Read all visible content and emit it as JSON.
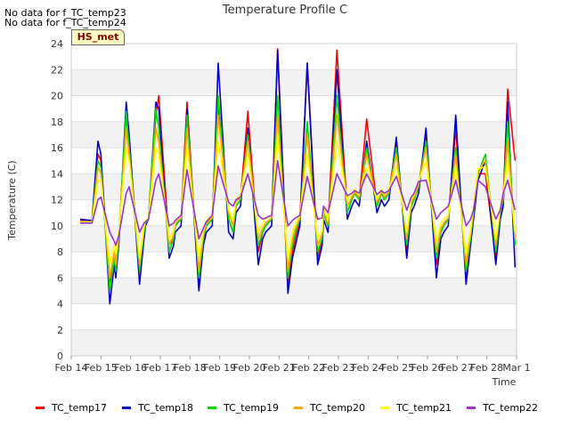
{
  "messages": [
    "No data for f_TC_temp23",
    "No data for f_TC_temp24"
  ],
  "badge": "HS_met",
  "chart_data": {
    "type": "line",
    "title": "Temperature Profile C",
    "xlabel": "Time",
    "ylabel": "Temperature (C)",
    "ylim": [
      0,
      24
    ],
    "yticks": [
      0,
      2,
      4,
      6,
      8,
      10,
      12,
      14,
      16,
      18,
      20,
      22,
      24
    ],
    "xticks": [
      "Feb 14",
      "Feb 15",
      "Feb 16",
      "Feb 17",
      "Feb 18",
      "Feb 19",
      "Feb 20",
      "Feb 21",
      "Feb 22",
      "Feb 23",
      "Feb 24",
      "Feb 25",
      "Feb 26",
      "Feb 27",
      "Feb 28",
      "Mar 1"
    ],
    "x_unit": "day index (0 = Feb 14)",
    "grid": true,
    "legend": "bottom",
    "series": [
      {
        "name": "TC_temp17",
        "color": "#ff0000",
        "x": [
          0.3,
          0.7,
          0.9,
          1.0,
          1.3,
          1.45,
          1.5,
          1.6,
          1.85,
          1.95,
          2.3,
          2.45,
          2.5,
          2.6,
          2.85,
          2.95,
          3.3,
          3.45,
          3.5,
          3.7,
          3.9,
          4.3,
          4.45,
          4.55,
          4.75,
          4.95,
          5.3,
          5.45,
          5.55,
          5.7,
          5.95,
          6.3,
          6.45,
          6.55,
          6.75,
          6.95,
          7.3,
          7.45,
          7.55,
          7.7,
          7.95,
          8.3,
          8.45,
          8.5,
          8.65,
          8.95,
          9.3,
          9.45,
          9.55,
          9.7,
          9.95,
          10.3,
          10.45,
          10.55,
          10.7,
          10.95,
          11.3,
          11.45,
          11.55,
          11.7,
          11.95,
          12.3,
          12.45,
          12.55,
          12.7,
          12.95,
          13.3,
          13.45,
          13.55,
          13.7,
          13.95,
          14.3,
          14.45,
          14.55,
          14.7,
          14.95
        ],
        "y": [
          10.4,
          10.3,
          15.5,
          15.0,
          5.5,
          7.5,
          6.8,
          9.0,
          18.5,
          16.5,
          6.5,
          9.5,
          10.3,
          10.5,
          18.5,
          20.0,
          8.5,
          9.0,
          10.0,
          10.5,
          19.5,
          5.2,
          9.0,
          10.0,
          10.5,
          19.0,
          10.5,
          9.5,
          11.5,
          12.0,
          18.8,
          8.0,
          9.5,
          10.0,
          10.5,
          23.6,
          5.5,
          8.0,
          9.0,
          10.5,
          22.5,
          7.5,
          9.0,
          11.0,
          10.0,
          23.5,
          11.0,
          12.0,
          12.5,
          12.0,
          18.2,
          11.5,
          12.5,
          12.0,
          12.5,
          16.5,
          8.0,
          11.5,
          12.0,
          13.0,
          17.0,
          7.0,
          9.5,
          10.0,
          10.5,
          17.5,
          6.0,
          9.0,
          11.0,
          14.0,
          14.0,
          7.5,
          11.0,
          12.0,
          20.5,
          15.0
        ]
      },
      {
        "name": "TC_temp18",
        "color": "#0000cc",
        "x": [
          0.3,
          0.7,
          0.9,
          1.0,
          1.3,
          1.45,
          1.5,
          1.6,
          1.85,
          1.95,
          2.3,
          2.45,
          2.5,
          2.6,
          2.85,
          2.95,
          3.3,
          3.45,
          3.5,
          3.7,
          3.9,
          4.3,
          4.45,
          4.55,
          4.75,
          4.95,
          5.3,
          5.45,
          5.55,
          5.7,
          5.95,
          6.3,
          6.45,
          6.55,
          6.75,
          6.95,
          7.3,
          7.45,
          7.55,
          7.7,
          7.95,
          8.3,
          8.45,
          8.5,
          8.65,
          8.95,
          9.3,
          9.45,
          9.55,
          9.7,
          9.95,
          10.3,
          10.45,
          10.55,
          10.7,
          10.95,
          11.3,
          11.45,
          11.55,
          11.7,
          11.95,
          12.3,
          12.45,
          12.55,
          12.7,
          12.95,
          13.3,
          13.45,
          13.55,
          13.7,
          13.95,
          14.3,
          14.45,
          14.55,
          14.7,
          14.95
        ],
        "y": [
          10.5,
          10.4,
          16.5,
          15.5,
          4.0,
          7.0,
          6.0,
          8.5,
          19.5,
          17.0,
          5.5,
          9.0,
          10.0,
          10.5,
          19.5,
          19.0,
          7.5,
          8.5,
          9.5,
          10.0,
          19.0,
          5.0,
          8.5,
          9.5,
          10.0,
          22.5,
          9.5,
          9.0,
          11.0,
          11.5,
          17.5,
          7.0,
          9.0,
          9.5,
          10.0,
          23.5,
          4.8,
          7.5,
          8.5,
          10.0,
          22.5,
          7.0,
          8.5,
          10.5,
          9.5,
          22.0,
          10.5,
          11.5,
          12.0,
          11.5,
          16.5,
          11.0,
          12.0,
          11.5,
          12.0,
          16.8,
          7.5,
          11.0,
          11.5,
          12.5,
          17.5,
          6.0,
          9.0,
          9.5,
          10.0,
          18.5,
          5.5,
          8.5,
          10.5,
          13.5,
          15.0,
          7.0,
          10.5,
          11.5,
          19.5,
          6.8
        ]
      },
      {
        "name": "TC_temp19",
        "color": "#00dd00",
        "x": [
          0.3,
          0.7,
          0.9,
          1.0,
          1.3,
          1.45,
          1.5,
          1.6,
          1.85,
          1.95,
          2.3,
          2.45,
          2.5,
          2.6,
          2.85,
          2.95,
          3.3,
          3.45,
          3.5,
          3.7,
          3.9,
          4.3,
          4.45,
          4.55,
          4.75,
          4.95,
          5.3,
          5.45,
          5.55,
          5.7,
          5.95,
          6.3,
          6.45,
          6.55,
          6.75,
          6.95,
          7.3,
          7.45,
          7.55,
          7.7,
          7.95,
          8.3,
          8.45,
          8.5,
          8.65,
          8.95,
          9.3,
          9.45,
          9.55,
          9.7,
          9.95,
          10.3,
          10.45,
          10.55,
          10.7,
          10.95,
          11.3,
          11.45,
          11.55,
          11.7,
          11.95,
          12.3,
          12.45,
          12.55,
          12.7,
          12.95,
          13.3,
          13.45,
          13.55,
          13.7,
          13.95,
          14.3,
          14.45,
          14.55,
          14.7,
          14.95
        ],
        "y": [
          10.3,
          10.3,
          15.0,
          14.5,
          5.0,
          7.5,
          6.5,
          9.0,
          18.8,
          16.0,
          6.5,
          9.5,
          10.2,
          10.5,
          19.0,
          17.5,
          8.0,
          9.0,
          10.0,
          10.5,
          18.5,
          6.0,
          9.0,
          10.0,
          10.5,
          20.0,
          10.5,
          9.5,
          11.5,
          12.0,
          17.0,
          8.5,
          9.5,
          10.0,
          10.5,
          20.0,
          6.0,
          8.5,
          9.5,
          10.5,
          18.0,
          8.0,
          9.0,
          11.0,
          10.0,
          20.0,
          11.0,
          12.0,
          12.5,
          12.0,
          16.0,
          11.5,
          12.5,
          12.0,
          12.5,
          16.0,
          8.5,
          11.5,
          12.0,
          13.0,
          16.5,
          7.5,
          9.5,
          10.0,
          10.5,
          16.0,
          6.5,
          9.0,
          11.0,
          14.0,
          15.5,
          8.0,
          11.0,
          12.0,
          18.0,
          8.5
        ]
      },
      {
        "name": "TC_temp20",
        "color": "#ffa500",
        "x": [
          0.3,
          0.7,
          0.9,
          1.0,
          1.3,
          1.45,
          1.5,
          1.6,
          1.85,
          1.95,
          2.3,
          2.45,
          2.5,
          2.6,
          2.85,
          2.95,
          3.3,
          3.45,
          3.5,
          3.7,
          3.9,
          4.3,
          4.45,
          4.55,
          4.75,
          4.95,
          5.3,
          5.45,
          5.55,
          5.7,
          5.95,
          6.3,
          6.45,
          6.55,
          6.75,
          6.95,
          7.3,
          7.45,
          7.55,
          7.7,
          7.95,
          8.3,
          8.45,
          8.5,
          8.65,
          8.95,
          9.3,
          9.45,
          9.55,
          9.7,
          9.95,
          10.3,
          10.45,
          10.55,
          10.7,
          10.95,
          11.3,
          11.45,
          11.55,
          11.7,
          11.95,
          12.3,
          12.45,
          12.55,
          12.7,
          12.95,
          13.3,
          13.45,
          13.55,
          13.7,
          13.95,
          14.3,
          14.45,
          14.55,
          14.7,
          14.95
        ],
        "y": [
          10.3,
          10.3,
          14.5,
          14.0,
          6.0,
          8.0,
          7.0,
          9.3,
          17.5,
          15.5,
          7.0,
          9.8,
          10.3,
          10.5,
          17.5,
          16.5,
          8.5,
          9.3,
          10.2,
          10.6,
          17.5,
          6.5,
          9.3,
          10.2,
          10.6,
          18.5,
          11.0,
          10.0,
          11.8,
          12.2,
          16.5,
          9.0,
          9.8,
          10.2,
          10.6,
          18.5,
          6.5,
          9.0,
          9.8,
          10.6,
          17.0,
          8.5,
          9.3,
          11.2,
          10.2,
          18.5,
          11.5,
          12.2,
          12.6,
          12.2,
          15.5,
          11.8,
          12.6,
          12.2,
          12.6,
          15.5,
          9.0,
          11.8,
          12.2,
          13.2,
          16.0,
          8.0,
          9.8,
          10.2,
          10.6,
          15.5,
          7.0,
          9.3,
          11.2,
          14.2,
          15.0,
          8.5,
          11.2,
          12.2,
          16.5,
          9.0
        ]
      },
      {
        "name": "TC_temp21",
        "color": "#ffff00",
        "x": [
          0.3,
          0.7,
          0.9,
          1.0,
          1.3,
          1.45,
          1.5,
          1.6,
          1.85,
          1.95,
          2.3,
          2.45,
          2.5,
          2.6,
          2.85,
          2.95,
          3.3,
          3.45,
          3.5,
          3.7,
          3.9,
          4.3,
          4.45,
          4.55,
          4.75,
          4.95,
          5.3,
          5.45,
          5.55,
          5.7,
          5.95,
          6.3,
          6.45,
          6.55,
          6.75,
          6.95,
          7.3,
          7.45,
          7.55,
          7.7,
          7.95,
          8.3,
          8.45,
          8.5,
          8.65,
          8.95,
          9.3,
          9.45,
          9.55,
          9.7,
          9.95,
          10.3,
          10.45,
          10.55,
          10.7,
          10.95,
          11.3,
          11.45,
          11.55,
          11.7,
          11.95,
          12.3,
          12.45,
          12.55,
          12.7,
          12.95,
          13.3,
          13.45,
          13.55,
          13.7,
          13.95,
          14.3,
          14.45,
          14.55,
          14.7,
          14.95
        ],
        "y": [
          10.3,
          10.3,
          13.5,
          13.5,
          7.0,
          8.5,
          7.8,
          9.5,
          16.0,
          15.0,
          7.5,
          10.0,
          10.4,
          10.6,
          16.0,
          15.5,
          9.0,
          9.6,
          10.4,
          10.8,
          16.0,
          7.5,
          9.6,
          10.4,
          10.8,
          16.5,
          11.2,
          10.4,
          12.0,
          12.4,
          15.5,
          9.5,
          10.2,
          10.5,
          10.8,
          17.0,
          7.5,
          9.5,
          10.2,
          10.8,
          15.5,
          9.0,
          9.6,
          11.4,
          10.4,
          16.5,
          12.0,
          12.4,
          12.8,
          12.4,
          14.5,
          12.0,
          12.8,
          12.4,
          12.8,
          14.5,
          9.5,
          12.0,
          12.4,
          13.4,
          15.0,
          8.8,
          10.2,
          10.5,
          10.8,
          14.5,
          7.8,
          9.6,
          11.4,
          14.4,
          14.5,
          9.0,
          11.4,
          12.4,
          15.0,
          9.5
        ]
      },
      {
        "name": "TC_temp22",
        "color": "#9933cc",
        "x": [
          0.3,
          0.7,
          0.9,
          1.0,
          1.3,
          1.45,
          1.5,
          1.6,
          1.85,
          1.95,
          2.3,
          2.45,
          2.5,
          2.6,
          2.85,
          2.95,
          3.3,
          3.45,
          3.5,
          3.7,
          3.9,
          4.3,
          4.45,
          4.55,
          4.75,
          4.95,
          5.3,
          5.45,
          5.55,
          5.7,
          5.95,
          6.3,
          6.45,
          6.55,
          6.75,
          6.95,
          7.3,
          7.45,
          7.55,
          7.7,
          7.95,
          8.3,
          8.45,
          8.5,
          8.65,
          8.95,
          9.3,
          9.45,
          9.55,
          9.7,
          9.95,
          10.3,
          10.45,
          10.55,
          10.7,
          10.95,
          11.3,
          11.45,
          11.55,
          11.7,
          11.95,
          12.3,
          12.45,
          12.55,
          12.7,
          12.95,
          13.3,
          13.45,
          13.55,
          13.7,
          13.95,
          14.3,
          14.45,
          14.55,
          14.7,
          14.95
        ],
        "y": [
          10.2,
          10.2,
          12.0,
          12.2,
          9.5,
          8.8,
          8.5,
          9.2,
          12.5,
          13.0,
          9.5,
          10.2,
          10.3,
          10.5,
          13.5,
          14.0,
          10.0,
          10.2,
          10.4,
          10.8,
          14.3,
          9.0,
          9.8,
          10.3,
          10.8,
          14.6,
          11.8,
          11.5,
          12.0,
          12.2,
          14.0,
          10.8,
          10.5,
          10.6,
          10.8,
          15.0,
          10.0,
          10.4,
          10.6,
          10.8,
          13.8,
          10.5,
          10.6,
          11.5,
          11.0,
          14.0,
          12.3,
          12.5,
          12.7,
          12.5,
          14.0,
          12.4,
          12.7,
          12.5,
          12.7,
          13.8,
          11.2,
          12.2,
          12.5,
          13.4,
          13.5,
          10.5,
          11.0,
          11.2,
          11.5,
          13.5,
          10.0,
          10.5,
          11.2,
          13.5,
          13.0,
          10.5,
          11.2,
          12.5,
          13.5,
          11.2
        ]
      }
    ]
  }
}
